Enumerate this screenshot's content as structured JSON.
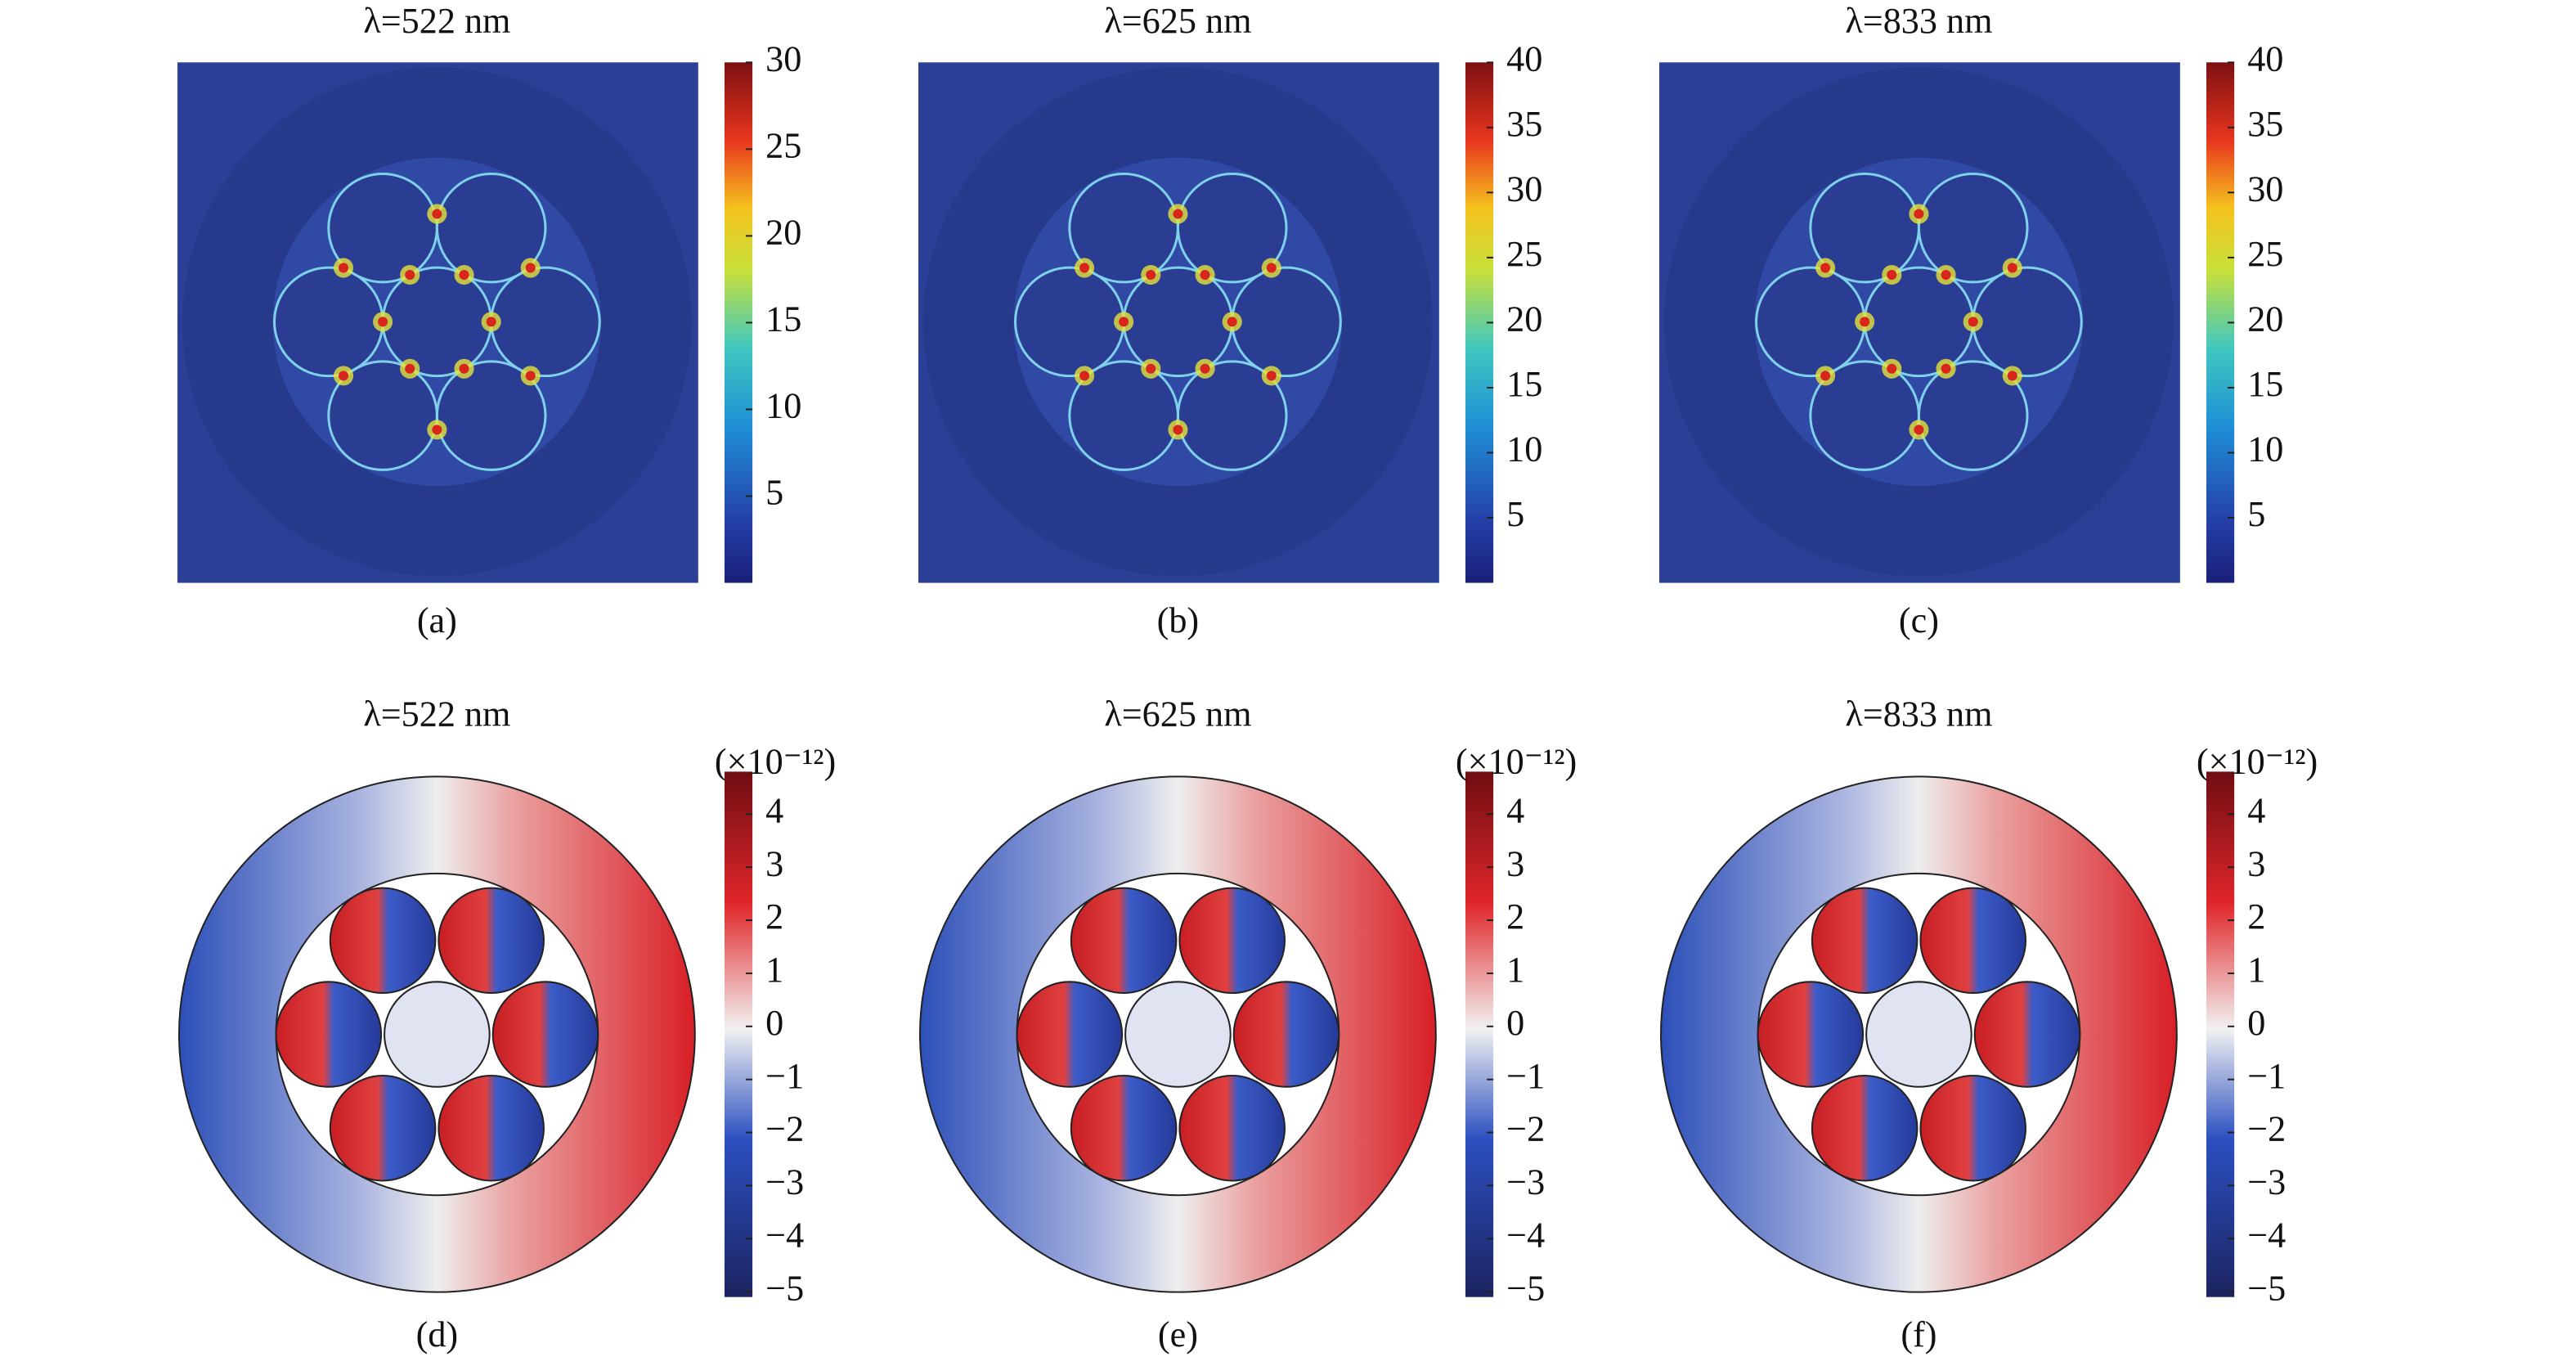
{
  "panels": [
    {
      "title": "λ=522 nm",
      "caption": "(a)",
      "colorbar": {
        "lim": [
          0,
          30
        ],
        "ticks": [
          5,
          10,
          15,
          20,
          25,
          30
        ]
      }
    },
    {
      "title": "λ=625 nm",
      "caption": "(b)",
      "colorbar": {
        "lim": [
          0,
          40
        ],
        "ticks": [
          5,
          10,
          15,
          20,
          25,
          30,
          35,
          40
        ]
      }
    },
    {
      "title": "λ=833 nm",
      "caption": "(c)",
      "colorbar": {
        "lim": [
          0,
          40
        ],
        "ticks": [
          5,
          10,
          15,
          20,
          25,
          30,
          35,
          40
        ]
      }
    },
    {
      "title": "λ=522 nm",
      "caption": "(d)",
      "colorbar": {
        "unit": "(×10⁻¹²)",
        "lim": [
          -5.1,
          4.8
        ],
        "ticks": [
          {
            "value": -5,
            "label": "−5"
          },
          {
            "value": -4,
            "label": "−4"
          },
          {
            "value": -3,
            "label": "−3"
          },
          {
            "value": -2,
            "label": "−2"
          },
          {
            "value": -1,
            "label": "−1"
          },
          0,
          1,
          2,
          3,
          4
        ]
      }
    },
    {
      "title": "λ=625 nm",
      "caption": "(e)",
      "colorbar": {
        "unit": "(×10⁻¹²)",
        "lim": [
          -5.1,
          4.8
        ],
        "ticks": [
          {
            "value": -5,
            "label": "−5"
          },
          {
            "value": -4,
            "label": "−4"
          },
          {
            "value": -3,
            "label": "−3"
          },
          {
            "value": -2,
            "label": "−2"
          },
          {
            "value": -1,
            "label": "−1"
          },
          0,
          1,
          2,
          3,
          4
        ]
      }
    },
    {
      "title": "λ=833 nm",
      "caption": "(f)",
      "colorbar": {
        "unit": "(×10⁻¹²)",
        "lim": [
          -5.1,
          4.8
        ],
        "ticks": [
          {
            "value": -5,
            "label": "−5"
          },
          {
            "value": -4,
            "label": "−4"
          },
          {
            "value": -3,
            "label": "−3"
          },
          {
            "value": -2,
            "label": "−2"
          },
          {
            "value": -1,
            "label": "−1"
          },
          0,
          1,
          2,
          3,
          4
        ]
      }
    }
  ]
}
